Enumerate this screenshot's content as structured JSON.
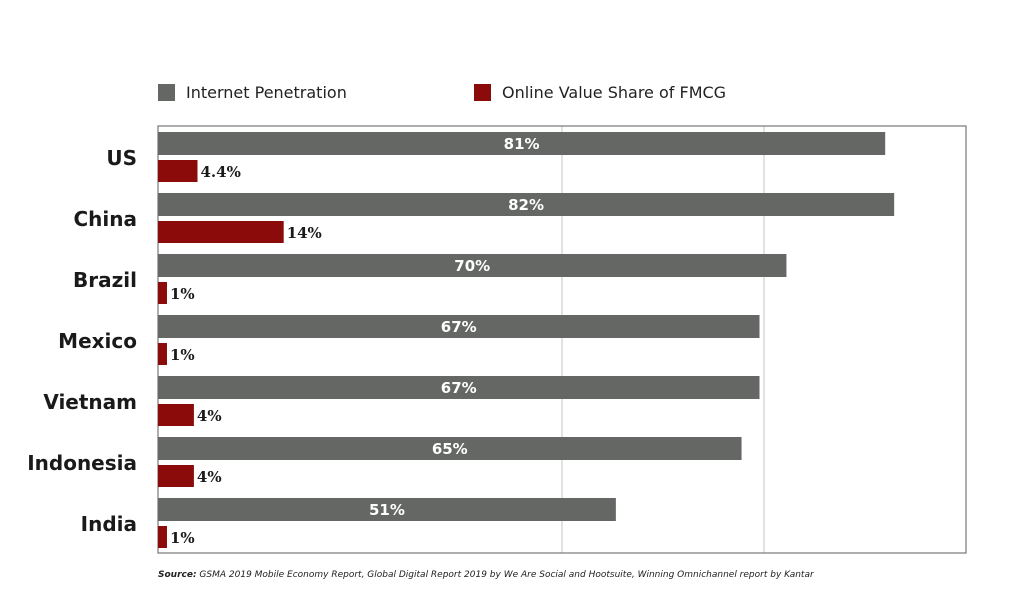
{
  "chart_data": {
    "type": "bar",
    "orientation": "horizontal",
    "categories": [
      "US",
      "China",
      "Brazil",
      "Mexico",
      "Vietnam",
      "Indonesia",
      "India"
    ],
    "series": [
      {
        "name": "Internet Penetration",
        "values": [
          81,
          82,
          70,
          67,
          67,
          65,
          51
        ],
        "labels": [
          "81%",
          "82%",
          "70%",
          "67%",
          "67%",
          "65%",
          "51%"
        ],
        "color": "#646764"
      },
      {
        "name": "Online Value Share of FMCG",
        "values": [
          4.4,
          14,
          1,
          1,
          4,
          4,
          1
        ],
        "labels": [
          "4.4%",
          "14%",
          "1%",
          "1%",
          "4%",
          "4%",
          "1%"
        ],
        "color": "#8b0a0a"
      }
    ],
    "xlim": [
      0,
      90
    ],
    "grid": true,
    "legend_position": "top"
  },
  "source": {
    "label": "Source:",
    "text": " GSMA 2019 Mobile Economy Report, Global Digital Report 2019 by We Are Social and Hootsuite, Winning Omnichannel report by Kantar"
  }
}
